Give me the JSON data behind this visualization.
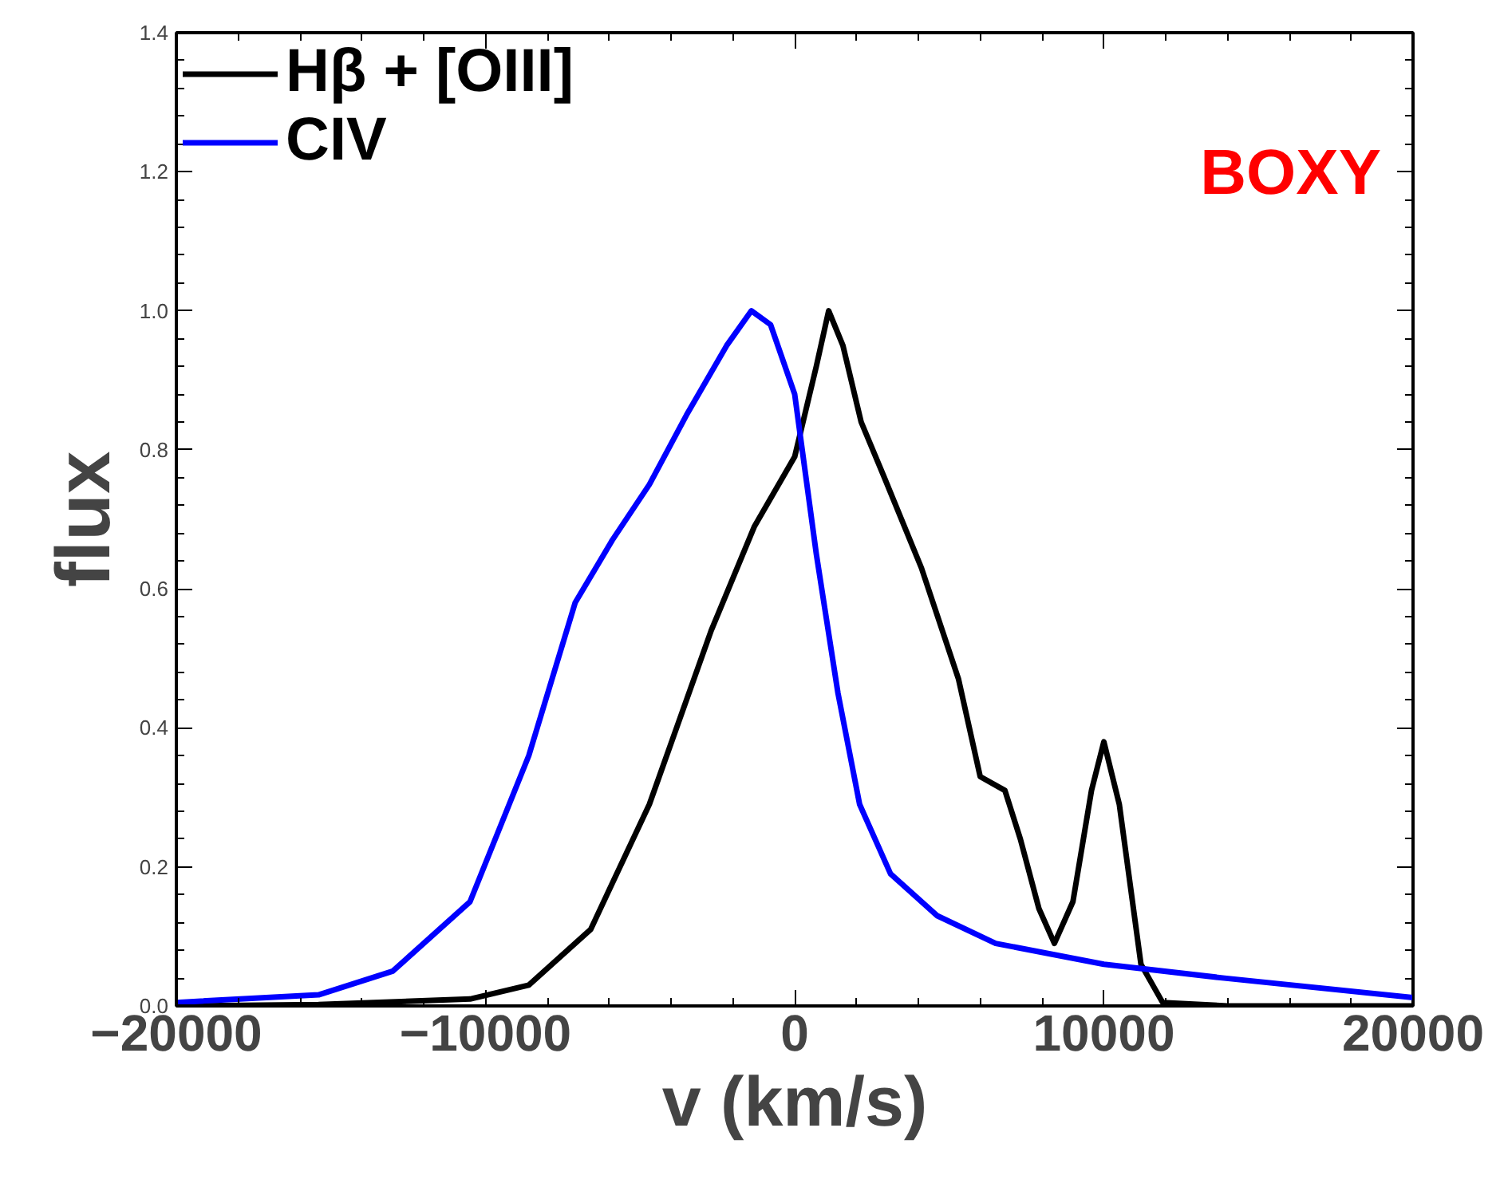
{
  "chart_data": {
    "type": "line",
    "xlabel": "v (km/s)",
    "ylabel": "flux",
    "annotations": [
      "BOXY"
    ],
    "xlim": [
      -20000,
      20000
    ],
    "ylim": [
      0,
      1.4
    ],
    "xticks": [
      -20000,
      -10000,
      0,
      10000,
      20000
    ],
    "yticks": [
      {
        "value": 0,
        "label": "0.0"
      },
      {
        "value": 0.2,
        "label": "0.2"
      },
      {
        "value": 0.4,
        "label": "0.4"
      },
      {
        "value": 0.6,
        "label": "0.6"
      },
      {
        "value": 0.8,
        "label": "0.8"
      },
      {
        "value": 1.0,
        "label": "1.0"
      },
      {
        "value": 1.2,
        "label": "1.2"
      },
      {
        "value": 1.4,
        "label": "1.4"
      }
    ],
    "grid": false,
    "legend": "top left",
    "line_style": "solid",
    "marker": "none",
    "series": [
      {
        "name": "Hβ + [OIII]",
        "color": "#000000",
        "x": [
          -20000,
          -15400,
          -10500,
          -8600,
          -6600,
          -4700,
          -2700,
          -1300,
          0,
          700,
          1100,
          1560,
          2150,
          2900,
          4100,
          5300,
          6000,
          6800,
          7300,
          7900,
          8400,
          9000,
          9600,
          10000,
          10500,
          11200,
          11900,
          14000,
          20000
        ],
        "values": [
          0,
          0.002,
          0.01,
          0.03,
          0.11,
          0.29,
          0.54,
          0.69,
          0.79,
          0.92,
          1.0,
          0.95,
          0.84,
          0.76,
          0.63,
          0.47,
          0.33,
          0.31,
          0.24,
          0.14,
          0.09,
          0.15,
          0.31,
          0.38,
          0.29,
          0.06,
          0.005,
          0,
          0
        ]
      },
      {
        "name": "CIV",
        "color": "#0000ff",
        "x": [
          -20000,
          -15400,
          -13000,
          -10500,
          -8600,
          -7100,
          -5900,
          -4700,
          -3500,
          -2200,
          -1400,
          -780,
          0,
          700,
          1400,
          2100,
          3100,
          4600,
          6500,
          10000,
          13900,
          20000
        ],
        "values": [
          0.005,
          0.016,
          0.05,
          0.15,
          0.36,
          0.58,
          0.67,
          0.75,
          0.85,
          0.95,
          1.0,
          0.98,
          0.88,
          0.65,
          0.45,
          0.29,
          0.19,
          0.13,
          0.09,
          0.06,
          0.04,
          0.012
        ]
      }
    ]
  }
}
